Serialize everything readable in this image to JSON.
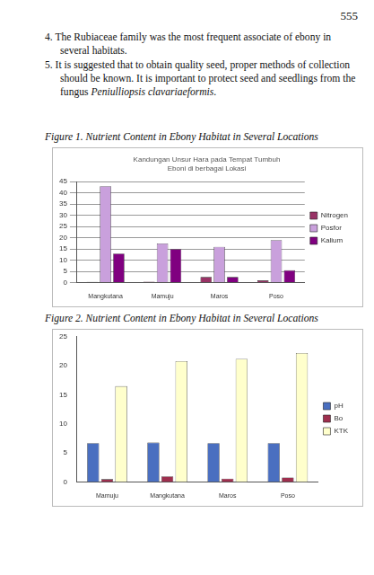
{
  "page_number": "555",
  "items": [
    {
      "number": "4.",
      "segments": [
        {
          "text": "The Rubiaceae family was the most frequent associate of ebony in several habitats."
        }
      ]
    },
    {
      "number": "5.",
      "segments": [
        {
          "text": "It is suggested that to obtain quality seed, proper methods of collection should be known. It is important to protect seed and seedlings from the fungus "
        },
        {
          "text": "Peniulliopsis clavariaeformis",
          "italic": true
        },
        {
          "text": "."
        }
      ]
    }
  ],
  "figures": [
    {
      "caption": "Figure 1. Nutrient Content in Ebony Habitat in Several Locations"
    },
    {
      "caption": "Figure 2. Nutrient Content in Ebony Habitat in Several Locations"
    }
  ],
  "chart_data": [
    {
      "type": "bar",
      "title": [
        "Kandungan Unsur Hara pada Tempat Tumbuh",
        "Eboni di berbagai Lokasi"
      ],
      "categories": [
        "Mangkutana",
        "Mamuju",
        "Maros",
        "Poso"
      ],
      "series": [
        {
          "name": "Nitrogen",
          "color": "#993366",
          "values": [
            0.3,
            0.4,
            2.5,
            1
          ]
        },
        {
          "name": "Posfor",
          "color": "#c9a0dc",
          "values": [
            43,
            17.5,
            16,
            19
          ]
        },
        {
          "name": "Kalium",
          "color": "#800080",
          "values": [
            13,
            15,
            2.5,
            5.5
          ]
        }
      ],
      "ylim": [
        0,
        45
      ],
      "yticks": [
        0,
        5,
        10,
        15,
        20,
        25,
        30,
        35,
        40,
        45
      ],
      "grid": true,
      "legend": "right"
    },
    {
      "type": "bar",
      "categories": [
        "Mamuju",
        "Mangkutana",
        "Maros",
        "Poso"
      ],
      "series": [
        {
          "name": "pH",
          "color": "#4a6fc0",
          "values": [
            6.7,
            6.8,
            6.7,
            6.7
          ]
        },
        {
          "name": "Bo",
          "color": "#9e2f4e",
          "values": [
            0.5,
            1,
            0.6,
            0.8
          ]
        },
        {
          "name": "KTK",
          "color": "#ffffcc",
          "values": [
            16.5,
            20.8,
            21.2,
            22.2
          ]
        }
      ],
      "ylim": [
        0,
        25
      ],
      "yticks": [
        0,
        5,
        10,
        15,
        20,
        25
      ],
      "grid": false,
      "legend": "right"
    }
  ]
}
